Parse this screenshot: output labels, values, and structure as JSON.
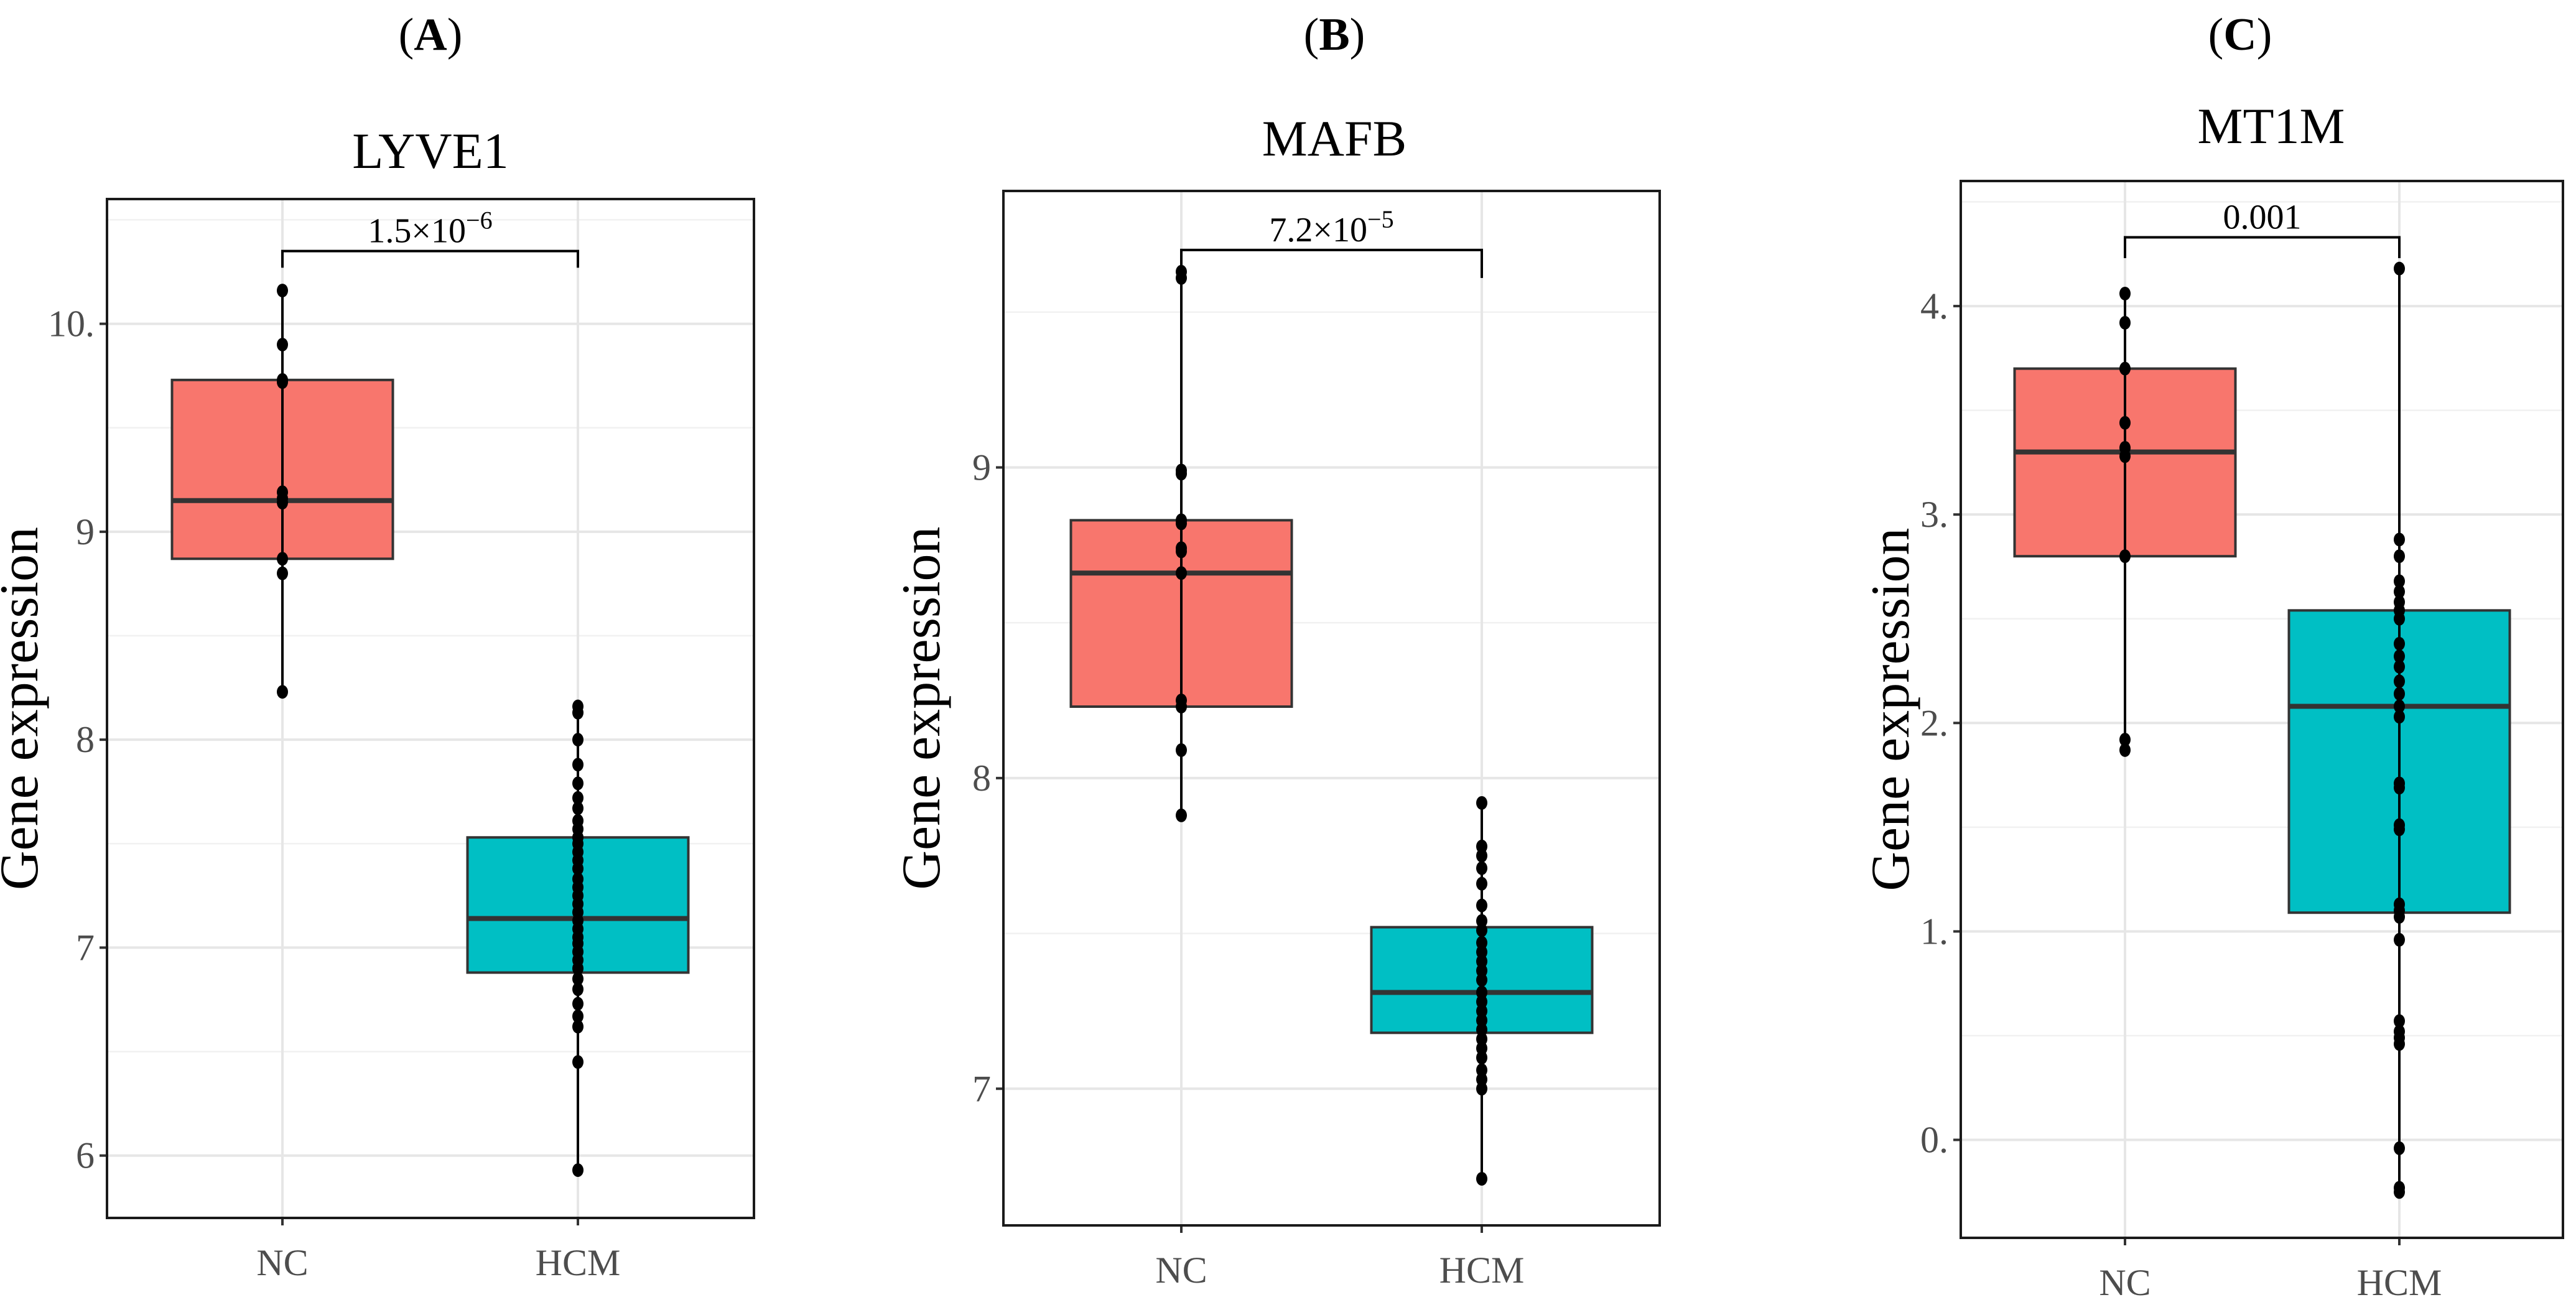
{
  "colors": {
    "NC": "#F8766D",
    "HCM": "#00BFC4"
  },
  "chart_data": [
    {
      "type": "box",
      "panel": "(A)",
      "title": "LYVE1",
      "xlabel": "",
      "ylabel": "Gene expression",
      "categories": [
        "NC",
        "HCM"
      ],
      "ylim": [
        5.7,
        10.6
      ],
      "yticks": [
        6,
        7,
        8,
        9,
        10
      ],
      "ytick_labels": [
        "6",
        "7",
        "8",
        "9",
        "10."
      ],
      "comparison": {
        "label": "1.5×10",
        "exponent": "−6",
        "y": 10.35,
        "tip_y": 10.27
      },
      "boxes": [
        {
          "category": "NC",
          "q1": 8.87,
          "median": 9.15,
          "q3": 9.73,
          "lower_whisker": 8.23,
          "upper_whisker": 10.16,
          "points": [
            10.16,
            9.9,
            9.73,
            9.72,
            9.19,
            9.16,
            9.14,
            8.87,
            8.8,
            8.23
          ]
        },
        {
          "category": "HCM",
          "q1": 6.88,
          "median": 7.14,
          "q3": 7.53,
          "lower_whisker": 5.93,
          "upper_whisker": 8.16,
          "points": [
            8.16,
            8.13,
            8.0,
            7.88,
            7.79,
            7.72,
            7.67,
            7.61,
            7.57,
            7.53,
            7.5,
            7.46,
            7.42,
            7.38,
            7.33,
            7.29,
            7.25,
            7.21,
            7.17,
            7.13,
            7.09,
            7.05,
            7.02,
            6.98,
            6.94,
            6.9,
            6.85,
            6.8,
            6.73,
            6.67,
            6.62,
            6.45,
            5.93
          ]
        }
      ]
    },
    {
      "type": "box",
      "panel": "(B)",
      "title": "MAFB",
      "xlabel": "",
      "ylabel": "Gene expression",
      "categories": [
        "NC",
        "HCM"
      ],
      "ylim": [
        6.56,
        9.89
      ],
      "yticks": [
        7,
        8,
        9
      ],
      "ytick_labels": [
        "7",
        "8",
        "9"
      ],
      "comparison": {
        "label": "7.2×10",
        "exponent": "−5",
        "y": 9.7,
        "tip_y": 9.61
      },
      "boxes": [
        {
          "category": "NC",
          "q1": 8.23,
          "median": 8.66,
          "q3": 8.83,
          "lower_whisker": 7.88,
          "upper_whisker": 9.63,
          "points": [
            9.63,
            9.61,
            8.99,
            8.98,
            8.83,
            8.82,
            8.74,
            8.73,
            8.66,
            8.25,
            8.23,
            8.09,
            7.88
          ]
        },
        {
          "category": "HCM",
          "q1": 7.18,
          "median": 7.31,
          "q3": 7.52,
          "lower_whisker": 6.71,
          "upper_whisker": 7.92,
          "points": [
            7.92,
            7.78,
            7.75,
            7.71,
            7.66,
            7.59,
            7.54,
            7.51,
            7.47,
            7.44,
            7.41,
            7.38,
            7.35,
            7.31,
            7.28,
            7.25,
            7.22,
            7.19,
            7.16,
            7.13,
            7.1,
            7.06,
            7.03,
            7.0,
            6.71
          ]
        }
      ]
    },
    {
      "type": "box",
      "panel": "(C)",
      "title": "MT1M",
      "xlabel": "",
      "ylabel": "Gene expression",
      "categories": [
        "NC",
        "HCM"
      ],
      "ylim": [
        -0.47,
        4.6
      ],
      "yticks": [
        0,
        1,
        2,
        3,
        4
      ],
      "ytick_labels": [
        "0.",
        "1.",
        "2.",
        "3.",
        "4."
      ],
      "comparison": {
        "label": "0.001",
        "exponent": "",
        "y": 4.33,
        "tip_y": 4.23
      },
      "boxes": [
        {
          "category": "NC",
          "q1": 2.8,
          "median": 3.3,
          "q3": 3.7,
          "lower_whisker": 1.87,
          "upper_whisker": 4.06,
          "points": [
            4.06,
            3.92,
            3.7,
            3.44,
            3.32,
            3.28,
            2.8,
            1.92,
            1.87
          ]
        },
        {
          "category": "HCM",
          "q1": 1.09,
          "median": 2.08,
          "q3": 2.54,
          "lower_whisker": -0.24,
          "upper_whisker": 4.18,
          "points": [
            4.18,
            2.88,
            2.8,
            2.68,
            2.63,
            2.58,
            2.54,
            2.5,
            2.38,
            2.32,
            2.27,
            2.2,
            2.14,
            2.08,
            2.03,
            1.71,
            1.69,
            1.51,
            1.49,
            1.13,
            1.1,
            1.07,
            0.96,
            0.57,
            0.52,
            0.49,
            0.46,
            -0.04,
            -0.23,
            -0.25
          ]
        }
      ]
    }
  ]
}
